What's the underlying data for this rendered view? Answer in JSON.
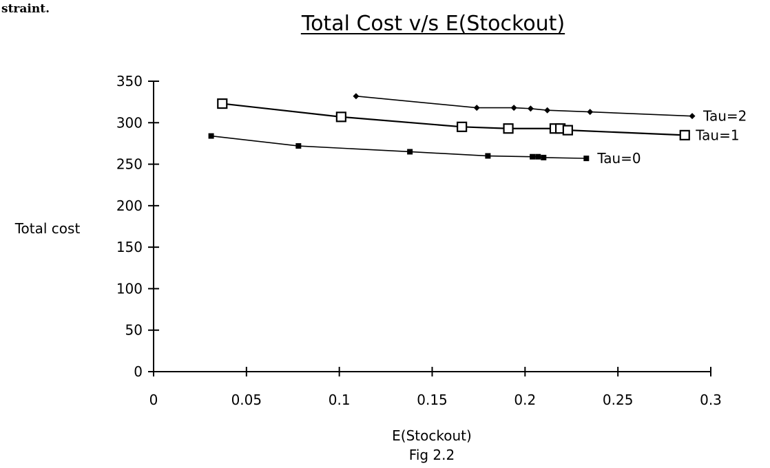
{
  "fragment_text": "straint.",
  "caption": "Fig 2.2",
  "chart_data": {
    "type": "line",
    "title": "Total Cost v/s E(Stockout)",
    "xlabel": "E(Stockout)",
    "ylabel": "Total cost",
    "xlim": [
      0,
      0.3
    ],
    "ylim": [
      0,
      350
    ],
    "x_ticks": [
      "0",
      "0.05",
      "0.1",
      "0.15",
      "0.2",
      "0.25",
      "0.3"
    ],
    "y_ticks": [
      "0",
      "50",
      "100",
      "150",
      "200",
      "250",
      "300",
      "350"
    ],
    "grid": false,
    "legend": "inline labels at line ends",
    "series": [
      {
        "name": "Tau=2",
        "marker": "diamond",
        "x": [
          0.109,
          0.174,
          0.194,
          0.203,
          0.212,
          0.235,
          0.29
        ],
        "y": [
          332,
          318,
          318,
          317,
          315,
          313,
          308
        ]
      },
      {
        "name": "Tau=1",
        "marker": "open-square",
        "x": [
          0.037,
          0.101,
          0.166,
          0.191,
          0.216,
          0.219,
          0.223,
          0.286
        ],
        "y": [
          323,
          307,
          295,
          293,
          293,
          293,
          291,
          285
        ]
      },
      {
        "name": "Tau=0",
        "marker": "filled-square",
        "x": [
          0.031,
          0.078,
          0.138,
          0.18,
          0.204,
          0.207,
          0.21,
          0.233
        ],
        "y": [
          284,
          272,
          265,
          260,
          259,
          259,
          258,
          257
        ]
      }
    ]
  }
}
